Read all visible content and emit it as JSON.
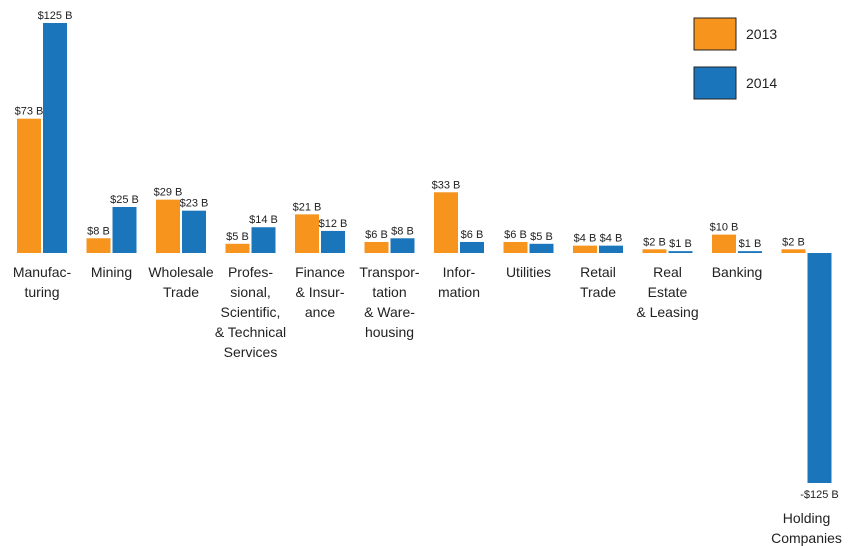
{
  "chart_data": {
    "type": "bar",
    "categories": [
      [
        "Manufac-",
        "turing"
      ],
      [
        "Mining"
      ],
      [
        "Wholesale",
        "Trade"
      ],
      [
        "Profes-",
        "sional,",
        "Scientific,",
        "& Technical",
        "Services"
      ],
      [
        "Finance",
        "& Insur-",
        "ance"
      ],
      [
        "Transpor-",
        "tation",
        "& Ware-",
        "housing"
      ],
      [
        "Infor-",
        "mation"
      ],
      [
        "Utilities"
      ],
      [
        "Retail",
        "Trade"
      ],
      [
        "Real",
        "Estate",
        "& Leasing"
      ],
      [
        "Banking"
      ],
      [
        "Holding",
        "Companies"
      ]
    ],
    "series": [
      {
        "name": "2013",
        "color": "#F7941D",
        "values": [
          73,
          8,
          29,
          5,
          21,
          6,
          33,
          6,
          4,
          2,
          10,
          2
        ],
        "labels": [
          "$73 B",
          "$8 B",
          "$29 B",
          "$5 B",
          "$21 B",
          "$6 B",
          "$33 B",
          "$6 B",
          "$4 B",
          "$2 B",
          "$10 B",
          "$2 B"
        ]
      },
      {
        "name": "2014",
        "color": "#1B75BB",
        "values": [
          125,
          25,
          23,
          14,
          12,
          8,
          6,
          5,
          4,
          1,
          1,
          -125
        ],
        "labels": [
          "$125 B",
          "$25 B",
          "$23 B",
          "$14 B",
          "$12 B",
          "$8 B",
          "$6 B",
          "$5 B",
          "$4 B",
          "$1 B",
          "$1 B",
          "-$125 B"
        ]
      }
    ],
    "ylim": [
      -125,
      125
    ],
    "grid": false,
    "legend_position": "top-right"
  }
}
